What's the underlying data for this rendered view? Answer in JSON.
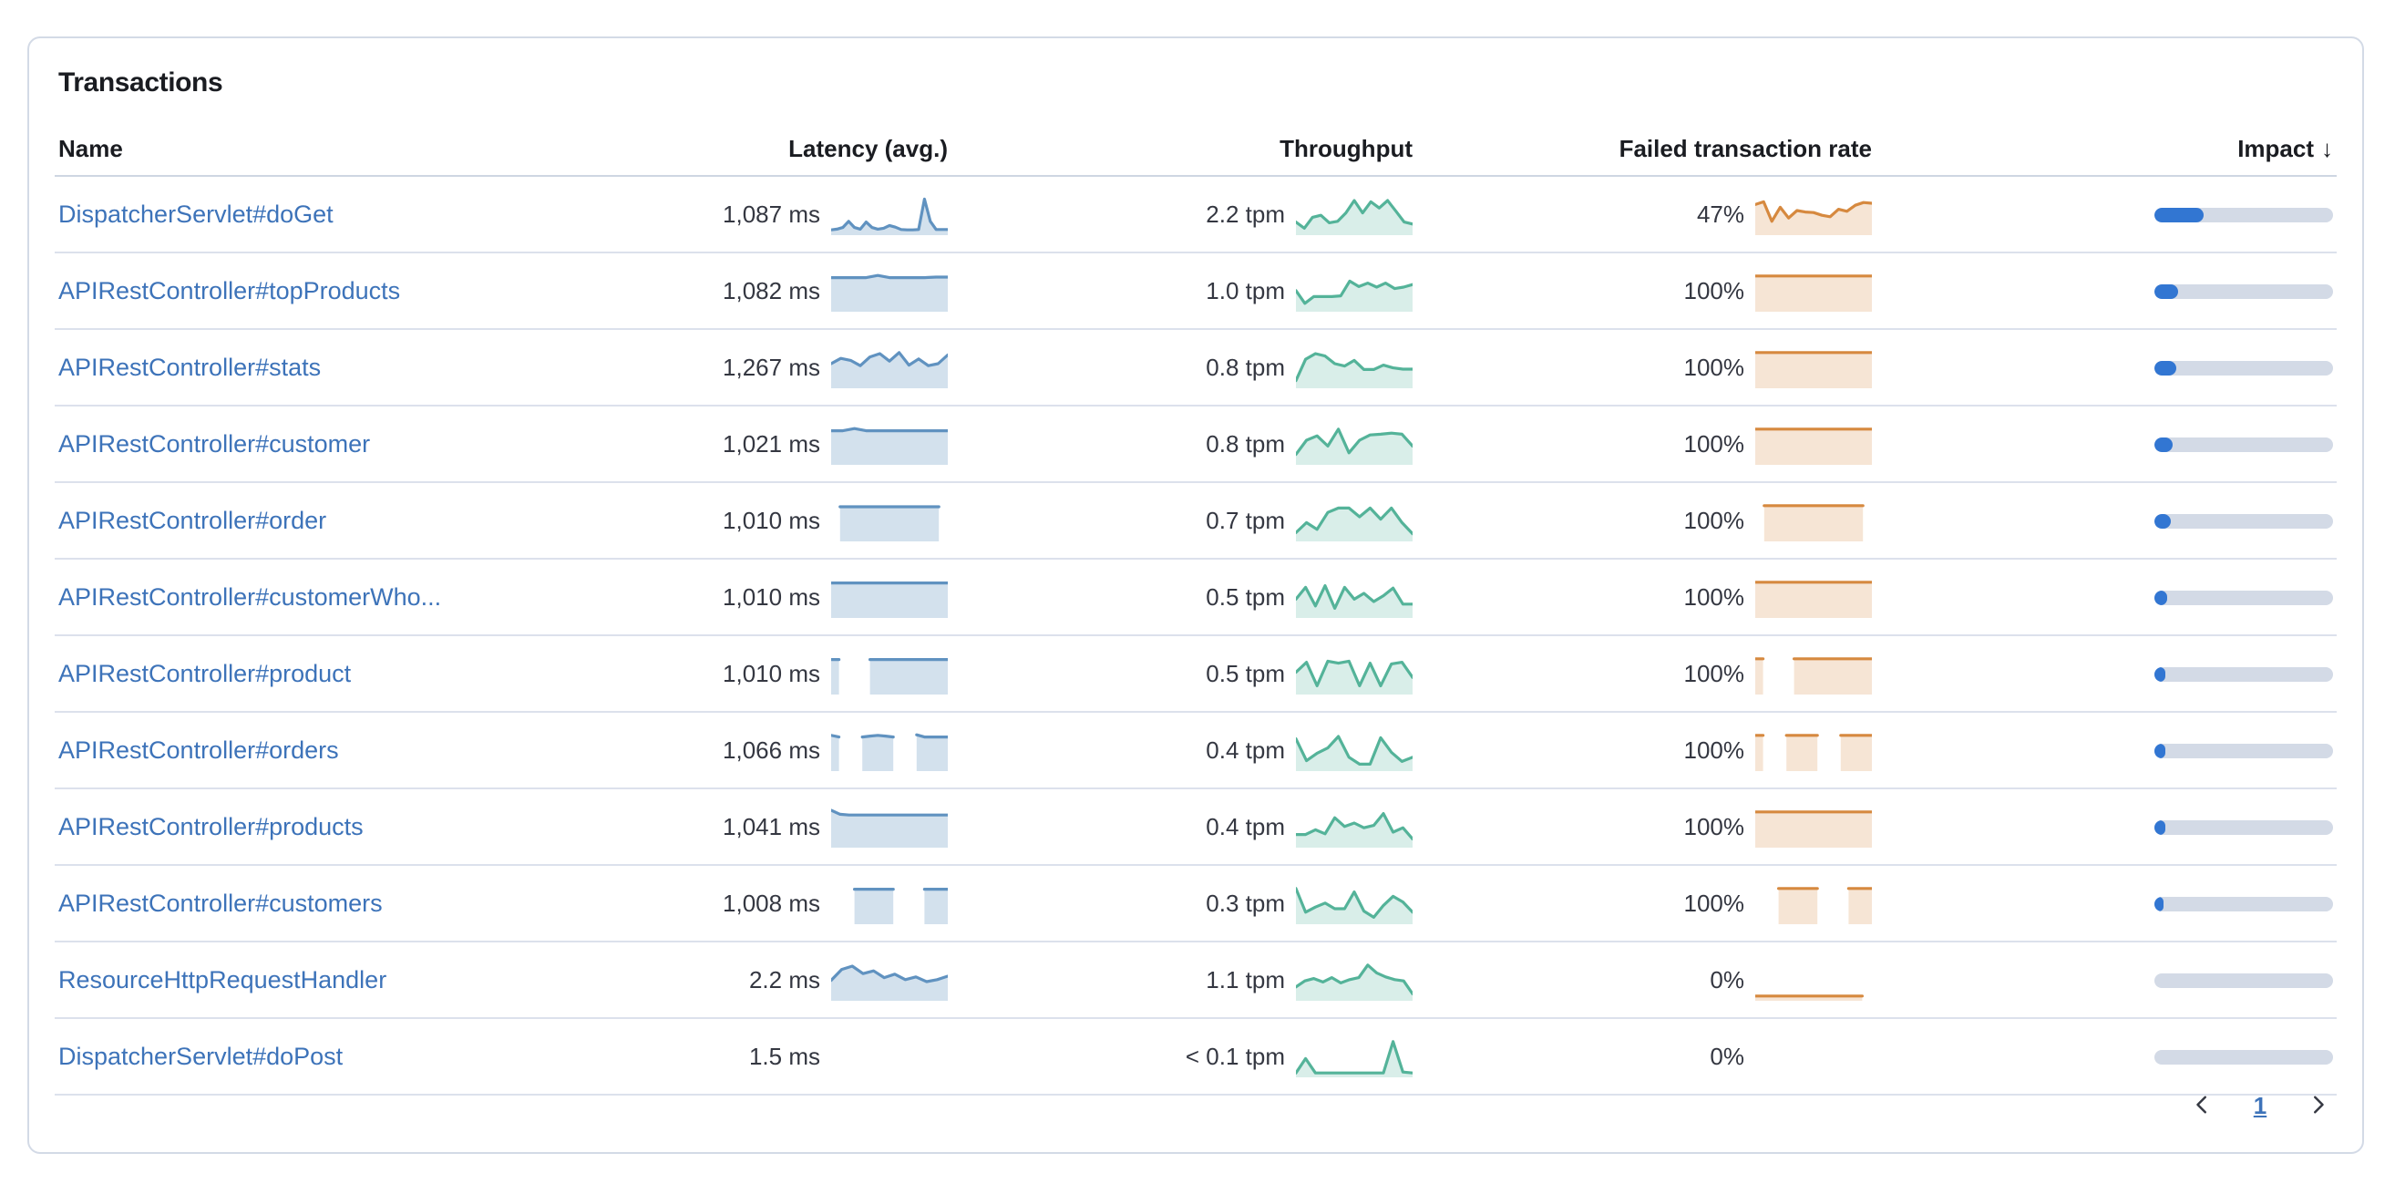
{
  "panel": {
    "title": "Transactions"
  },
  "table": {
    "columns": {
      "name": "Name",
      "latency": "Latency (avg.)",
      "throughput": "Throughput",
      "failed": "Failed transaction rate",
      "impact": "Impact"
    },
    "sort_icon": "↓",
    "sorted_column": "impact"
  },
  "colors": {
    "link": "#3D73B9",
    "text": "#343741",
    "heading": "#1a1c21",
    "panel_border": "#D3DAE6",
    "impact_fill": "#3276D2",
    "impact_track": "#D3DAE6",
    "latency": {
      "line": "#6092C0",
      "fill": "rgba(96,146,192,0.28)"
    },
    "throughput": {
      "line": "#54B399",
      "fill": "rgba(84,179,153,0.22)"
    },
    "failed": {
      "line": "#D6893F",
      "fill": "rgba(214,137,63,0.22)"
    }
  },
  "rows": [
    {
      "name": "DispatcherServlet#doGet",
      "latency": "1,087 ms",
      "latency_spark": [
        0.05,
        0.07,
        0.12,
        0.3,
        0.12,
        0.07,
        0.28,
        0.12,
        0.07,
        0.1,
        0.18,
        0.13,
        0.06,
        0.05,
        0.05,
        0.06,
        0.96,
        0.3,
        0.06,
        0.06,
        0.06
      ],
      "throughput": "2.2 tpm",
      "throughput_spark": [
        0.28,
        0.1,
        0.42,
        0.48,
        0.26,
        0.3,
        0.55,
        0.92,
        0.55,
        0.88,
        0.7,
        0.92,
        0.6,
        0.28,
        0.22
      ],
      "failed": "47%",
      "failed_spark": [
        0.8,
        0.88,
        0.3,
        0.72,
        0.4,
        0.62,
        0.58,
        0.56,
        0.48,
        0.44,
        0.66,
        0.6,
        0.78,
        0.86,
        0.84
      ],
      "impact_pct": 28
    },
    {
      "name": "APIRestController#topProducts",
      "latency": "1,082 ms",
      "latency_spark": [
        0.9,
        0.9,
        0.9,
        0.9,
        0.97,
        0.9,
        0.9,
        0.9,
        0.9,
        0.92,
        0.92
      ],
      "throughput": "1.0 tpm",
      "throughput_spark": [
        0.52,
        0.14,
        0.34,
        0.34,
        0.34,
        0.36,
        0.8,
        0.64,
        0.74,
        0.62,
        0.74,
        0.58,
        0.62,
        0.7
      ],
      "failed": "100%",
      "failed_spark": [
        0.95,
        0.95,
        0.95,
        0.95,
        0.95,
        0.95,
        0.95,
        0.95,
        0.95,
        0.95,
        0.95,
        0.95
      ],
      "impact_pct": 13
    },
    {
      "name": "APIRestController#stats",
      "latency": "1,267 ms",
      "latency_spark": [
        0.62,
        0.78,
        0.72,
        0.56,
        0.82,
        0.92,
        0.7,
        0.95,
        0.58,
        0.76,
        0.56,
        0.62,
        0.88
      ],
      "throughput": "0.8 tpm",
      "throughput_spark": [
        0.12,
        0.75,
        0.92,
        0.85,
        0.62,
        0.55,
        0.72,
        0.45,
        0.45,
        0.58,
        0.5,
        0.46,
        0.46
      ],
      "failed": "100%",
      "failed_spark": [
        0.95,
        0.95,
        0.95,
        0.95,
        0.95,
        0.95,
        0.95,
        0.95,
        0.95,
        0.95,
        0.95,
        0.95
      ],
      "impact_pct": 12
    },
    {
      "name": "APIRestController#customer",
      "latency": "1,021 ms",
      "latency_spark": [
        0.9,
        0.9,
        0.97,
        0.9,
        0.9,
        0.9,
        0.9,
        0.9,
        0.9,
        0.9,
        0.9
      ],
      "throughput": "0.8 tpm",
      "throughput_spark": [
        0.2,
        0.62,
        0.75,
        0.45,
        0.95,
        0.25,
        0.62,
        0.78,
        0.8,
        0.83,
        0.8,
        0.45
      ],
      "failed": "100%",
      "failed_spark": [
        0.95,
        0.95,
        0.95,
        0.95,
        0.95,
        0.95,
        0.95,
        0.95,
        0.95,
        0.95,
        0.95,
        0.95
      ],
      "impact_pct": 10
    },
    {
      "name": "APIRestController#order",
      "latency": "1,010 ms",
      "latency_spark": [
        null,
        0.92,
        0.92,
        0.92,
        0.92,
        0.92,
        0.92,
        0.92,
        0.92,
        0.92,
        0.92,
        0.92,
        0.92,
        null
      ],
      "throughput": "0.7 tpm",
      "throughput_spark": [
        0.15,
        0.45,
        0.25,
        0.75,
        0.88,
        0.88,
        0.62,
        0.88,
        0.55,
        0.88,
        0.45,
        0.12
      ],
      "failed": "100%",
      "failed_spark": [
        null,
        0.95,
        0.95,
        0.95,
        0.95,
        0.95,
        0.95,
        0.95,
        0.95,
        0.95,
        0.95,
        0.95,
        0.95,
        null
      ],
      "impact_pct": 9
    },
    {
      "name": "APIRestController#customerWho...",
      "latency": "1,010 ms",
      "latency_spark": [
        0.93,
        0.93,
        0.93,
        0.93,
        0.93,
        0.93,
        0.93,
        0.93,
        0.93,
        0.93,
        0.93,
        0.93
      ],
      "throughput": "0.5 tpm",
      "throughput_spark": [
        0.45,
        0.8,
        0.25,
        0.85,
        0.18,
        0.8,
        0.45,
        0.62,
        0.38,
        0.55,
        0.78,
        0.3,
        0.3
      ],
      "failed": "100%",
      "failed_spark": [
        0.95,
        0.95,
        0.95,
        0.95,
        0.95,
        0.95,
        0.95,
        0.95,
        0.95,
        0.95,
        0.95,
        0.95
      ],
      "impact_pct": 7
    },
    {
      "name": "APIRestController#product",
      "latency": "1,010 ms",
      "latency_spark": [
        0.93,
        0.93,
        null,
        null,
        null,
        0.93,
        0.93,
        0.93,
        0.93,
        0.93,
        0.93,
        0.93,
        0.93,
        0.93,
        0.93,
        0.93
      ],
      "throughput": "0.5 tpm",
      "throughput_spark": [
        0.55,
        0.85,
        0.15,
        0.88,
        0.82,
        0.88,
        0.15,
        0.82,
        0.15,
        0.8,
        0.85,
        0.4
      ],
      "failed": "100%",
      "failed_spark": [
        0.95,
        0.95,
        null,
        null,
        null,
        0.95,
        0.95,
        0.95,
        0.95,
        0.95,
        0.95,
        0.95,
        0.95,
        0.95,
        0.95,
        0.95
      ],
      "impact_pct": 6
    },
    {
      "name": "APIRestController#orders",
      "latency": "1,066 ms",
      "latency_spark": [
        0.95,
        0.9,
        null,
        null,
        0.9,
        0.93,
        0.95,
        0.93,
        0.9,
        null,
        null,
        0.97,
        0.9,
        0.9,
        0.9,
        0.9
      ],
      "throughput": "0.4 tpm",
      "throughput_spark": [
        0.85,
        0.2,
        0.42,
        0.58,
        0.92,
        0.3,
        0.1,
        0.1,
        0.88,
        0.45,
        0.18,
        0.3
      ],
      "failed": "100%",
      "failed_spark": [
        0.95,
        0.95,
        null,
        null,
        0.95,
        0.95,
        0.95,
        0.95,
        0.95,
        null,
        null,
        0.95,
        0.95,
        0.95,
        0.95,
        0.95
      ],
      "impact_pct": 6
    },
    {
      "name": "APIRestController#products",
      "latency": "1,041 ms",
      "latency_spark": [
        1.0,
        0.88,
        0.86,
        0.86,
        0.86,
        0.86,
        0.86,
        0.86,
        0.86,
        0.86,
        0.86,
        0.86,
        0.86,
        0.86
      ],
      "throughput": "0.4 tpm",
      "throughput_spark": [
        0.28,
        0.28,
        0.42,
        0.3,
        0.78,
        0.52,
        0.62,
        0.48,
        0.55,
        0.9,
        0.35,
        0.48,
        0.15
      ],
      "failed": "100%",
      "failed_spark": [
        0.95,
        0.95,
        0.95,
        0.95,
        0.95,
        0.95,
        0.95,
        0.95,
        0.95,
        0.95,
        0.95,
        0.95
      ],
      "impact_pct": 6
    },
    {
      "name": "APIRestController#customers",
      "latency": "1,008 ms",
      "latency_spark": [
        null,
        null,
        null,
        0.93,
        0.93,
        0.93,
        0.93,
        0.93,
        0.93,
        null,
        null,
        null,
        0.93,
        0.93,
        0.93,
        0.93
      ],
      "throughput": "0.3 tpm",
      "throughput_spark": [
        0.95,
        0.25,
        0.4,
        0.52,
        0.35,
        0.35,
        0.85,
        0.28,
        0.1,
        0.45,
        0.72,
        0.55,
        0.25
      ],
      "failed": "100%",
      "failed_spark": [
        null,
        null,
        null,
        0.95,
        0.95,
        0.95,
        0.95,
        0.95,
        0.95,
        null,
        null,
        null,
        0.95,
        0.95,
        0.95,
        0.95
      ],
      "impact_pct": 5
    },
    {
      "name": "ResourceHttpRequestHandler",
      "latency": "2.2 ms",
      "latency_spark": [
        0.5,
        0.82,
        0.92,
        0.7,
        0.78,
        0.58,
        0.68,
        0.52,
        0.6,
        0.46,
        0.52,
        0.62
      ],
      "throughput": "1.1 tpm",
      "throughput_spark": [
        0.3,
        0.48,
        0.55,
        0.45,
        0.58,
        0.42,
        0.52,
        0.58,
        0.95,
        0.72,
        0.6,
        0.52,
        0.48,
        0.1
      ],
      "failed": "0%",
      "failed_spark": [
        0.03,
        0.03,
        0.03,
        0.03,
        0.03,
        0.03,
        0.03,
        0.03,
        0.03,
        0.03,
        0.03,
        0.03,
        null
      ],
      "impact_pct": 0
    },
    {
      "name": "DispatcherServlet#doPost",
      "latency": "1.5 ms",
      "latency_spark": [],
      "throughput": "< 0.1 tpm",
      "throughput_spark": [
        0.02,
        0.45,
        0.02,
        0.02,
        0.02,
        0.02,
        0.02,
        0.02,
        0.02,
        0.02,
        0.95,
        0.05,
        0.02
      ],
      "failed": "0%",
      "failed_spark": [],
      "impact_pct": 0
    }
  ],
  "pagination": {
    "page": "1",
    "prev_icon": "chevron-left",
    "next_icon": "chevron-right"
  }
}
